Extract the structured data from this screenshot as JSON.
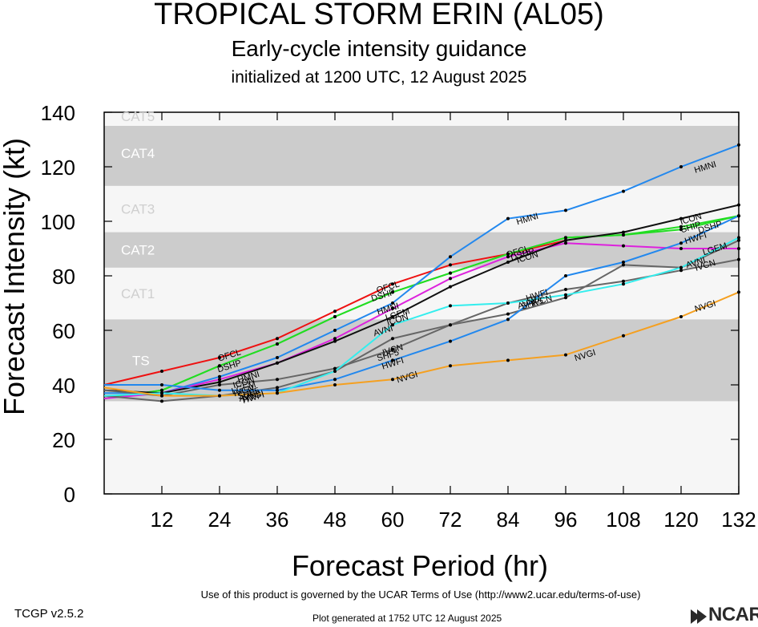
{
  "header": {
    "title": "TROPICAL STORM ERIN (AL05)",
    "subtitle": "Early-cycle intensity guidance",
    "init": "initialized at 1200 UTC, 12 August 2025"
  },
  "footer": {
    "terms": "Use of this product is governed by the UCAR Terms of Use (http://www2.ucar.edu/terms-of-use)",
    "version": "TCGP v2.5.2",
    "generated": "Plot generated at 1752 UTC   12 August 2025",
    "logo": "NCAR"
  },
  "colors": {
    "band_dark": "#cccccc",
    "band_light": "#f6f6f6"
  },
  "chart_data": {
    "type": "line",
    "xlabel": "Forecast Period (hr)",
    "ylabel": "Forecast Intensity (kt)",
    "xlim": [
      0,
      132
    ],
    "ylim": [
      0,
      140
    ],
    "xticks": [
      12,
      24,
      36,
      48,
      60,
      72,
      84,
      96,
      108,
      120,
      132
    ],
    "yticks": [
      0,
      20,
      40,
      60,
      80,
      100,
      120,
      140
    ],
    "categories": [
      {
        "label": "CAT5",
        "from": 137,
        "to": 140
      },
      {
        "label": "CAT4",
        "from": 113,
        "to": 137
      },
      {
        "label": "CAT3",
        "from": 96,
        "to": 113
      },
      {
        "label": "CAT2",
        "from": 83,
        "to": 96
      },
      {
        "label": "CAT1",
        "from": 64,
        "to": 83
      },
      {
        "label": "TS",
        "from": 34,
        "to": 64
      }
    ],
    "category_bands": [
      {
        "from": 34,
        "to": 64,
        "shade": "dark"
      },
      {
        "from": 83,
        "to": 96,
        "shade": "dark"
      },
      {
        "from": 113,
        "to": 135,
        "shade": "dark"
      }
    ],
    "series": [
      {
        "name": "OFCL",
        "color": "#ee1111",
        "x": [
          0,
          12,
          24,
          36,
          48,
          60,
          72,
          84,
          96
        ],
        "values": [
          40,
          45,
          50,
          57,
          67,
          77,
          84,
          88,
          93
        ]
      },
      {
        "name": "DSHP",
        "color": "#22dd22",
        "x": [
          0,
          12,
          24,
          36,
          48,
          60,
          72,
          84,
          96,
          108,
          120,
          132
        ],
        "values": [
          35,
          38,
          47,
          55,
          65,
          74,
          81,
          88,
          94,
          95,
          97,
          102
        ]
      },
      {
        "name": "SHIP",
        "color": "#22dd22",
        "x": [
          0,
          12,
          24,
          36,
          48,
          60,
          72,
          84,
          96,
          108,
          120,
          132
        ],
        "values": [
          35,
          38,
          47,
          55,
          65,
          74,
          81,
          88,
          94,
          95,
          98,
          102
        ]
      },
      {
        "name": "HMNI",
        "color": "#2288ee",
        "x": [
          0,
          12,
          24,
          36,
          48,
          60,
          72,
          84,
          96,
          108,
          120,
          132
        ],
        "values": [
          37,
          37,
          43,
          50,
          60,
          70,
          87,
          101,
          104,
          111,
          120,
          128
        ]
      },
      {
        "name": "LGEM",
        "color": "#dd22dd",
        "x": [
          0,
          12,
          24,
          36,
          48,
          60,
          72,
          84,
          96,
          108,
          120,
          132
        ],
        "values": [
          35,
          37,
          42,
          48,
          57,
          68,
          79,
          87,
          92,
          91,
          90,
          90
        ]
      },
      {
        "name": "ICON",
        "color": "#111111",
        "x": [
          0,
          12,
          24,
          36,
          48,
          60,
          72,
          84,
          96,
          108,
          120,
          132
        ],
        "values": [
          38,
          37,
          41,
          48,
          56,
          65,
          76,
          85,
          93,
          96,
          101,
          106
        ]
      },
      {
        "name": "IVCN",
        "color": "#666666",
        "x": [
          0,
          12,
          24,
          36,
          48,
          60,
          72,
          84,
          96,
          108,
          120,
          132
        ],
        "values": [
          38,
          36,
          40,
          42,
          46,
          53,
          62,
          70,
          75,
          78,
          82,
          86
        ]
      },
      {
        "name": "AVNI",
        "color": "#666666",
        "x": [
          0,
          12,
          24,
          36,
          48,
          60,
          72,
          84,
          96,
          108,
          120,
          132
        ],
        "values": [
          36,
          34,
          36,
          39,
          45,
          57,
          62,
          66,
          72,
          84,
          83,
          93
        ]
      },
      {
        "name": "HWFI",
        "color": "#2288ee",
        "x": [
          0,
          12,
          24,
          36,
          48,
          60,
          72,
          84,
          96,
          108,
          120,
          132
        ],
        "values": [
          40,
          40,
          38,
          38,
          42,
          49,
          56,
          64,
          80,
          85,
          92,
          102
        ]
      },
      {
        "name": "SHF5",
        "color": "#33eeee",
        "x": [
          0,
          12,
          24,
          36,
          48,
          60,
          72,
          84,
          96,
          108,
          120,
          132
        ],
        "values": [
          36,
          37,
          36,
          37,
          45,
          62,
          69,
          70,
          73,
          77,
          83,
          94
        ]
      },
      {
        "name": "NVGI",
        "color": "#f5a020",
        "x": [
          0,
          12,
          24,
          36,
          48,
          60,
          72,
          84,
          96,
          108,
          120,
          132
        ],
        "values": [
          39,
          36,
          36,
          37,
          40,
          42,
          47,
          49,
          51,
          58,
          65,
          74
        ]
      }
    ],
    "annotations": [
      {
        "text": "OFCL",
        "x": 26,
        "y": 51
      },
      {
        "text": "DSHP",
        "x": 26,
        "y": 47
      },
      {
        "text": "HMNI",
        "x": 30,
        "y": 43
      },
      {
        "text": "ICON",
        "x": 29,
        "y": 41
      },
      {
        "text": "LGEM",
        "x": 29,
        "y": 39
      },
      {
        "text": "IVCN",
        "x": 29,
        "y": 38
      },
      {
        "text": "SHF5",
        "x": 30,
        "y": 37
      },
      {
        "text": "AVNI",
        "x": 30,
        "y": 36
      },
      {
        "text": "HWFI",
        "x": 31,
        "y": 35.5
      },
      {
        "text": "NVGI",
        "x": 31,
        "y": 36
      },
      {
        "text": "OFCL",
        "x": 59,
        "y": 76
      },
      {
        "text": "DSHP",
        "x": 58,
        "y": 73
      },
      {
        "text": "HMNI",
        "x": 59,
        "y": 68
      },
      {
        "text": "LGEM",
        "x": 61,
        "y": 66
      },
      {
        "text": "ICON",
        "x": 61,
        "y": 64
      },
      {
        "text": "AVNI",
        "x": 58,
        "y": 60
      },
      {
        "text": "IVCN",
        "x": 60,
        "y": 53
      },
      {
        "text": "SHF5",
        "x": 59,
        "y": 51
      },
      {
        "text": "HWFI",
        "x": 60,
        "y": 48
      },
      {
        "text": "NVGI",
        "x": 63,
        "y": 43
      },
      {
        "text": "HMNI",
        "x": 88,
        "y": 101
      },
      {
        "text": "OFCL",
        "x": 86,
        "y": 89
      },
      {
        "text": "DSHP",
        "x": 87,
        "y": 88
      },
      {
        "text": "ICON",
        "x": 88,
        "y": 87
      },
      {
        "text": "AVNI",
        "x": 88,
        "y": 70
      },
      {
        "text": "HWFI",
        "x": 90,
        "y": 73
      },
      {
        "text": "IVCN",
        "x": 91,
        "y": 71
      },
      {
        "text": "SHF5",
        "x": 89,
        "y": 70
      },
      {
        "text": "NVGI",
        "x": 100,
        "y": 51
      },
      {
        "text": "HMNI",
        "x": 125,
        "y": 120
      },
      {
        "text": "ICON",
        "x": 122,
        "y": 101
      },
      {
        "text": "DSHP",
        "x": 126,
        "y": 98
      },
      {
        "text": "SHIP",
        "x": 122,
        "y": 98
      },
      {
        "text": "HWFI",
        "x": 123,
        "y": 94
      },
      {
        "text": "LGEM",
        "x": 127,
        "y": 90
      },
      {
        "text": "AVNI",
        "x": 123,
        "y": 85
      },
      {
        "text": "IVCN",
        "x": 125,
        "y": 84
      },
      {
        "text": "NVGI",
        "x": 125,
        "y": 69
      }
    ]
  }
}
